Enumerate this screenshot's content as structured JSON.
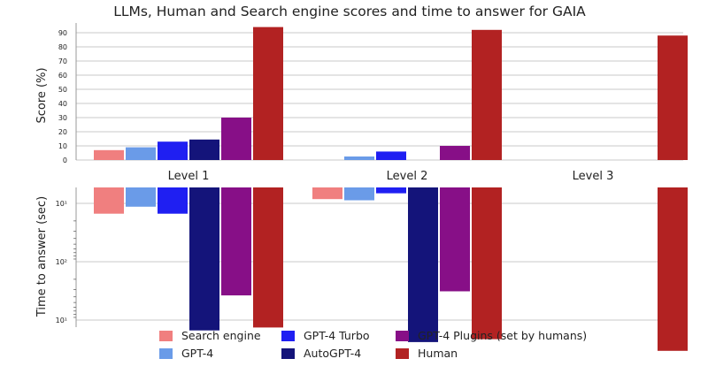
{
  "chart_data": [
    {
      "type": "bar",
      "title": "LLMs, Human and Search engine scores and time to answer for GAIA",
      "ylabel": "Score (%)",
      "categories": [
        "Level 1",
        "Level 2",
        "Level 3"
      ],
      "ylim": [
        0,
        95
      ],
      "yticks": [
        "0",
        "10",
        "20",
        "30",
        "40",
        "50",
        "60",
        "70",
        "80",
        "90"
      ],
      "grid": true,
      "series": [
        {
          "name": "Search engine",
          "values": [
            7,
            0,
            0
          ]
        },
        {
          "name": "GPT-4",
          "values": [
            9,
            2.5,
            0
          ]
        },
        {
          "name": "GPT-4 Turbo",
          "values": [
            13,
            6,
            0
          ]
        },
        {
          "name": "AutoGPT-4",
          "values": [
            14.5,
            0,
            0
          ]
        },
        {
          "name": "GPT-4 Plugins (set by humans)",
          "values": [
            30,
            10,
            0
          ]
        },
        {
          "name": "Human",
          "values": [
            94,
            92,
            88
          ]
        }
      ]
    },
    {
      "type": "bar",
      "ylabel": "Time to answer (sec)",
      "categories": [
        "Level 1",
        "Level 2",
        "Level 3"
      ],
      "yscale": "log",
      "orientation": "downward",
      "yticks": [
        "10¹",
        "10²",
        "10¹"
      ],
      "grid": true,
      "series": [
        {
          "name": "Search engine",
          "values": [
            1.45,
            1.2,
            null
          ]
        },
        {
          "name": "GPT-4",
          "values": [
            1.33,
            1.22,
            null
          ]
        },
        {
          "name": "GPT-4 Turbo",
          "values": [
            1.45,
            1.1,
            null
          ]
        },
        {
          "name": "AutoGPT-4",
          "values": [
            3.45,
            3.65,
            null
          ]
        },
        {
          "name": "GPT-4 Plugins (set by humans)",
          "values": [
            2.85,
            2.78,
            null
          ]
        },
        {
          "name": "Human",
          "values": [
            3.4,
            3.6,
            3.8
          ]
        }
      ]
    }
  ],
  "legend": {
    "placement": "bottom",
    "entries": [
      {
        "label": "Search engine",
        "color": "#f07f7f"
      },
      {
        "label": "GPT-4",
        "color": "#6a9be8"
      },
      {
        "label": "GPT-4 Turbo",
        "color": "#1f1ff2"
      },
      {
        "label": "AutoGPT-4",
        "color": "#14147a"
      },
      {
        "label": "GPT-4 Plugins (set by humans)",
        "color": "#870f87"
      },
      {
        "label": "Human",
        "color": "#b22222"
      }
    ]
  },
  "colors": {
    "grid": "#c8c8c8",
    "axis": "#999999"
  }
}
